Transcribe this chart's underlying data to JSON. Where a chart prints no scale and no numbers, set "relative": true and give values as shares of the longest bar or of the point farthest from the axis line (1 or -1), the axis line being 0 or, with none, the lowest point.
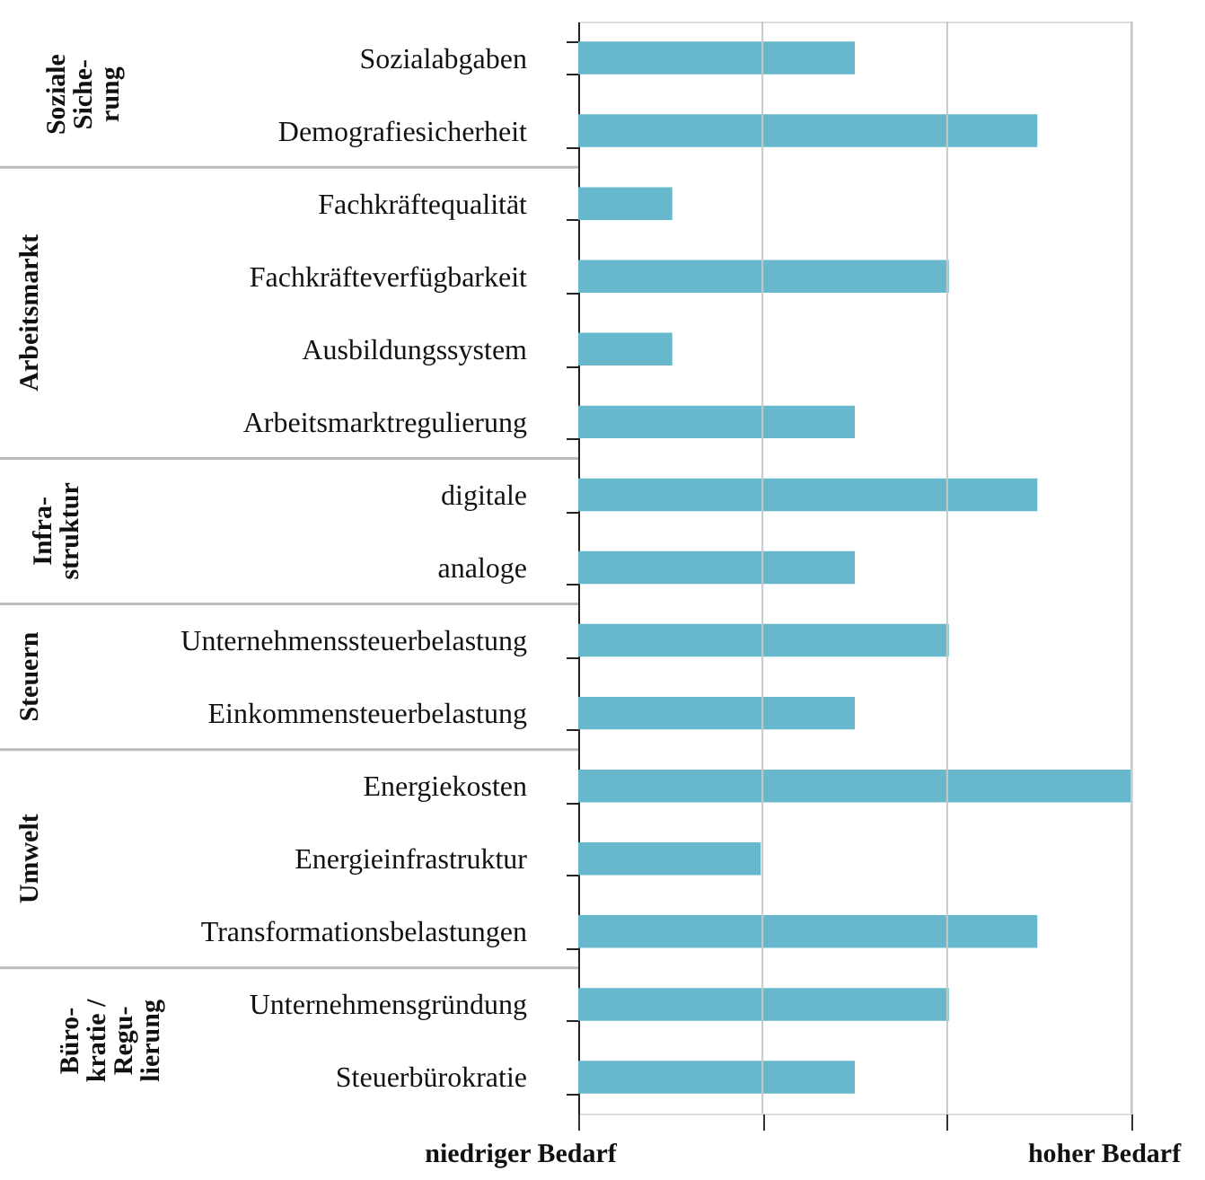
{
  "chart_data": {
    "type": "bar",
    "orientation": "horizontal",
    "relative": true,
    "categories": [
      "Sozialabgaben",
      "Demografiesicherheit",
      "Fachkräftequalität",
      "Fachkräfteverfügbarkeit",
      "Ausbildungssystem",
      "Arbeitsmarktregulierung",
      "digitale",
      "analoge",
      "Unternehmenssteuerbelastung",
      "Einkommensteuerbelastung",
      "Energiekosten",
      "Energieinfrastruktur",
      "Transformationsbelastungen",
      "Unternehmensgründung",
      "Steuerbürokratie"
    ],
    "values": [
      0.5,
      0.83,
      0.17,
      0.67,
      0.17,
      0.5,
      0.83,
      0.5,
      0.67,
      0.5,
      1,
      0.33,
      0.83,
      0.67,
      0.5
    ],
    "ref_lines": [
      {
        "axis": "x",
        "value": 0.333,
        "color": "#c8c8c8"
      },
      {
        "axis": "x",
        "value": 0.667,
        "color": "#c8c8c8"
      },
      {
        "axis": "x",
        "value": 1,
        "color": "#c8c8c8"
      }
    ],
    "color": "#67b8cc",
    "annotations": [
      "Soziale\nSiche-\nrung",
      "Arbeitsmarkt",
      "Infra-\nstruktur",
      "Steuern",
      "Umwelt",
      "Büro-\nkratie /\nRegu-\nlierung",
      "niedriger Bedarf",
      "hoher Bedarf"
    ]
  }
}
